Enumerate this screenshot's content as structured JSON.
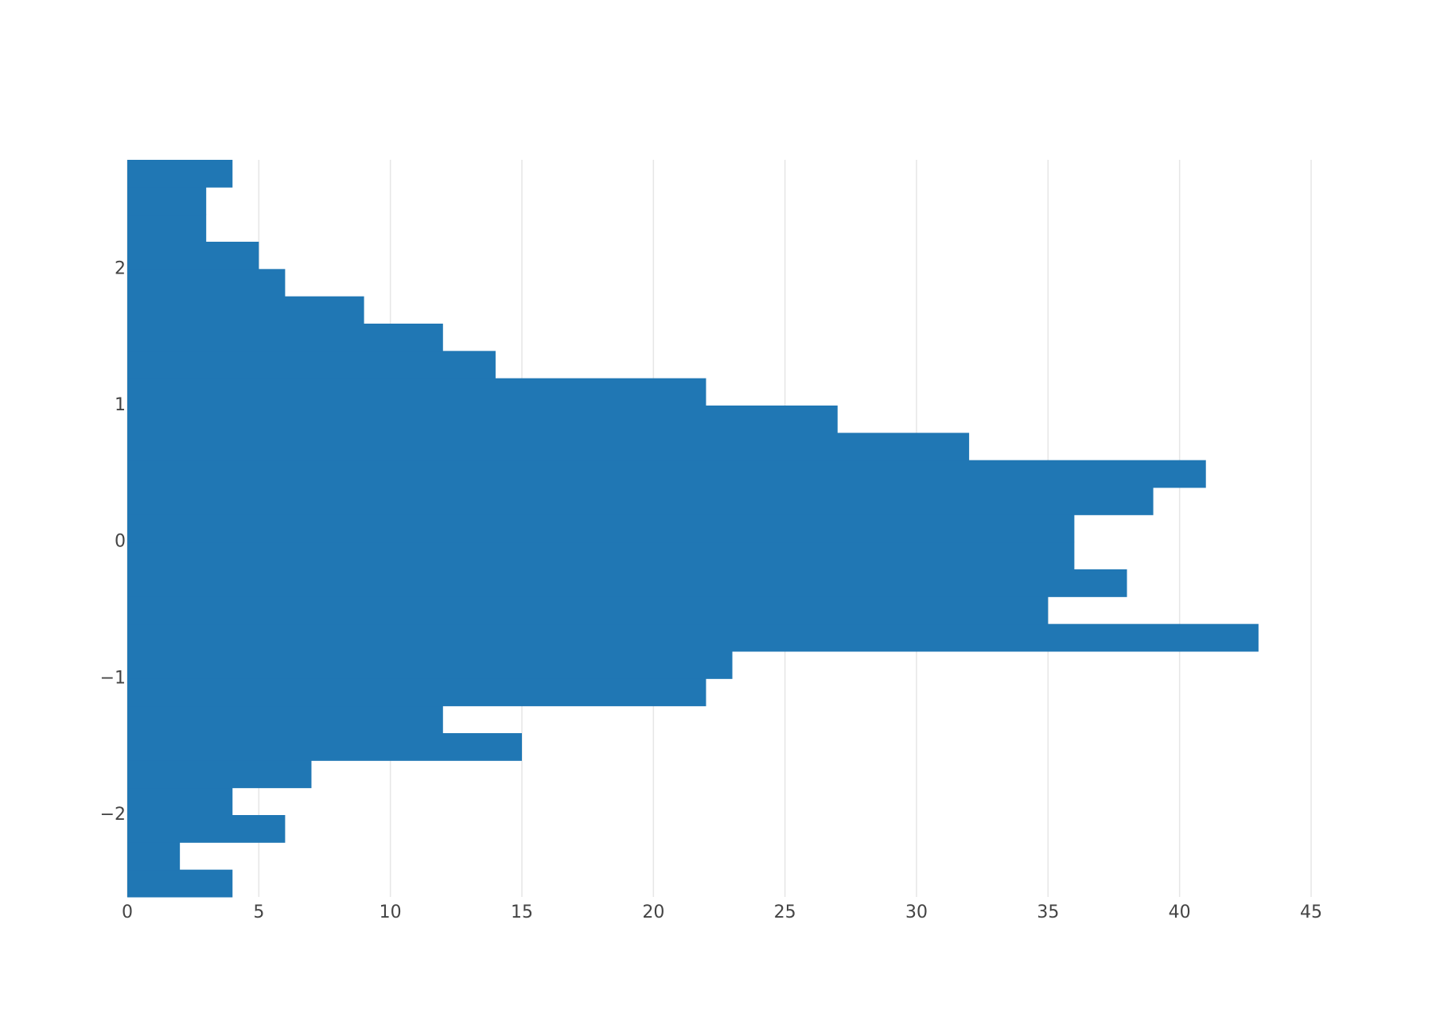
{
  "chart_data": {
    "type": "histogram",
    "orientation": "horizontal",
    "color": "#2077b4",
    "bins": [
      -2.6,
      -2.4,
      -2.2,
      -2.0,
      -1.8,
      -1.6,
      -1.4,
      -1.2,
      -1.0,
      -0.8,
      -0.6,
      -0.4,
      -0.2,
      0.0,
      0.2,
      0.4,
      0.6,
      0.8,
      1.0,
      1.2,
      1.4,
      1.6,
      1.8,
      2.0,
      2.2,
      2.4,
      2.6,
      2.8
    ],
    "values": [
      4,
      2,
      6,
      4,
      7,
      15,
      12,
      22,
      23,
      43,
      35,
      38,
      36,
      36,
      39,
      41,
      32,
      27,
      22,
      14,
      12,
      9,
      6,
      5,
      3,
      3,
      4
    ],
    "xlim": [
      0,
      45
    ],
    "xticks": [
      0,
      5,
      10,
      15,
      20,
      25,
      30,
      35,
      40,
      45
    ],
    "ylim": [
      -2.6,
      2.8
    ],
    "yticks": [
      {
        "value": -2,
        "label": "−2"
      },
      {
        "value": -1,
        "label": "−1"
      },
      0,
      1,
      2
    ],
    "grid": true
  }
}
